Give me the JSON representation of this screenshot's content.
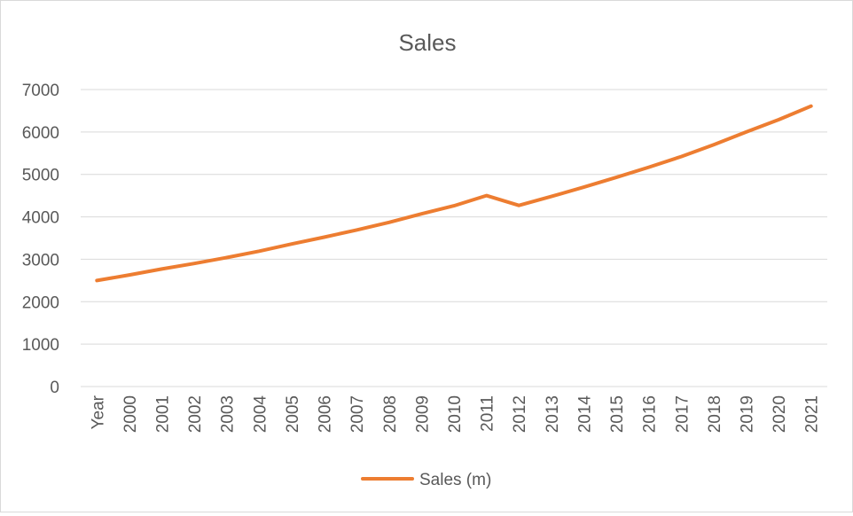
{
  "chart_data": {
    "type": "line",
    "title": "Sales",
    "xlabel": "",
    "ylabel": "",
    "categories": [
      "Year",
      "2000",
      "2001",
      "2002",
      "2003",
      "2004",
      "2005",
      "2006",
      "2007",
      "2008",
      "2009",
      "2010",
      "2011",
      "2012",
      "2013",
      "2014",
      "2015",
      "2016",
      "2017",
      "2018",
      "2019",
      "2020",
      "2021"
    ],
    "series": [
      {
        "name": "Sales (m)",
        "color": "#ed7d31",
        "values": [
          2500,
          2630,
          2770,
          2900,
          3040,
          3190,
          3360,
          3520,
          3690,
          3870,
          4070,
          4260,
          4500,
          4270,
          4480,
          4700,
          4930,
          5170,
          5420,
          5700,
          6000,
          6290,
          6610
        ]
      }
    ],
    "ylim": [
      0,
      7000
    ],
    "yticks": [
      0,
      1000,
      2000,
      3000,
      4000,
      5000,
      6000,
      7000
    ],
    "grid": true,
    "legend_position": "bottom"
  }
}
